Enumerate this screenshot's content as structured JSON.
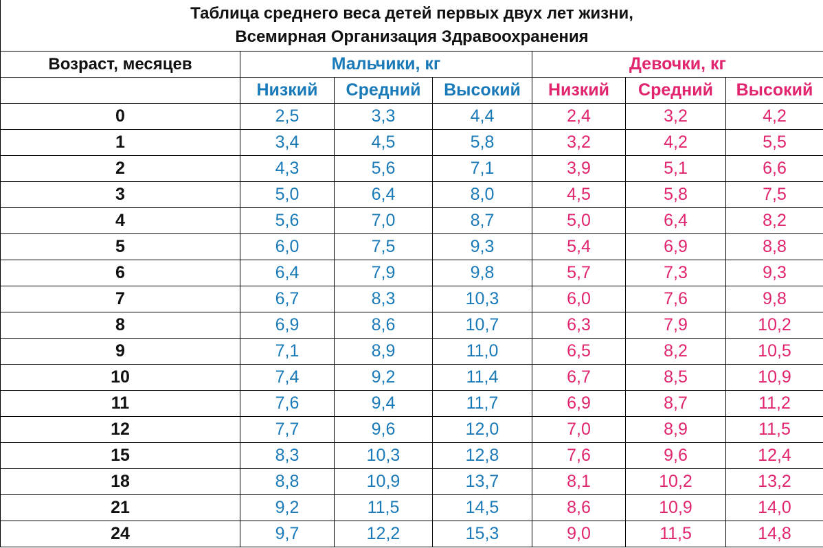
{
  "title": {
    "line1": "Таблица среднего веса детей первых двух лет жизни,",
    "line2": "Всемирная Организация Здравоохранения"
  },
  "header": {
    "age": "Возраст, месяцев",
    "boys": "Мальчики, кг",
    "girls": "Девочки, кг",
    "sub_boys": [
      "Низкий",
      "Средний",
      "Высокий"
    ],
    "sub_girls": [
      "Низкий",
      "Средний",
      "Высокий"
    ]
  },
  "colors": {
    "boys": "#1a7ab8",
    "girls": "#e0246e",
    "text": "#111111"
  },
  "rows": [
    {
      "age": "0",
      "boys": [
        "2,5",
        "3,3",
        "4,4"
      ],
      "girls": [
        "2,4",
        "3,2",
        "4,2"
      ]
    },
    {
      "age": "1",
      "boys": [
        "3,4",
        "4,5",
        "5,8"
      ],
      "girls": [
        "3,2",
        "4,2",
        "5,5"
      ]
    },
    {
      "age": "2",
      "boys": [
        "4,3",
        "5,6",
        "7,1"
      ],
      "girls": [
        "3,9",
        "5,1",
        "6,6"
      ]
    },
    {
      "age": "3",
      "boys": [
        "5,0",
        "6,4",
        "8,0"
      ],
      "girls": [
        "4,5",
        "5,8",
        "7,5"
      ]
    },
    {
      "age": "4",
      "boys": [
        "5,6",
        "7,0",
        "8,7"
      ],
      "girls": [
        "5,0",
        "6,4",
        "8,2"
      ]
    },
    {
      "age": "5",
      "boys": [
        "6,0",
        "7,5",
        "9,3"
      ],
      "girls": [
        "5,4",
        "6,9",
        "8,8"
      ]
    },
    {
      "age": "6",
      "boys": [
        "6,4",
        "7,9",
        "9,8"
      ],
      "girls": [
        "5,7",
        "7,3",
        "9,3"
      ]
    },
    {
      "age": "7",
      "boys": [
        "6,7",
        "8,3",
        "10,3"
      ],
      "girls": [
        "6,0",
        "7,6",
        "9,8"
      ]
    },
    {
      "age": "8",
      "boys": [
        "6,9",
        "8,6",
        "10,7"
      ],
      "girls": [
        "6,3",
        "7,9",
        "10,2"
      ]
    },
    {
      "age": "9",
      "boys": [
        "7,1",
        "8,9",
        "11,0"
      ],
      "girls": [
        "6,5",
        "8,2",
        "10,5"
      ]
    },
    {
      "age": "10",
      "boys": [
        "7,4",
        "9,2",
        "11,4"
      ],
      "girls": [
        "6,7",
        "8,5",
        "10,9"
      ]
    },
    {
      "age": "11",
      "boys": [
        "7,6",
        "9,4",
        "11,7"
      ],
      "girls": [
        "6,9",
        "8,7",
        "11,2"
      ]
    },
    {
      "age": "12",
      "boys": [
        "7,7",
        "9,6",
        "12,0"
      ],
      "girls": [
        "7,0",
        "8,9",
        "11,5"
      ]
    },
    {
      "age": "15",
      "boys": [
        "8,3",
        "10,3",
        "12,8"
      ],
      "girls": [
        "7,6",
        "9,6",
        "12,4"
      ]
    },
    {
      "age": "18",
      "boys": [
        "8,8",
        "10,9",
        "13,7"
      ],
      "girls": [
        "8,1",
        "10,2",
        "13,2"
      ]
    },
    {
      "age": "21",
      "boys": [
        "9,2",
        "11,5",
        "14,5"
      ],
      "girls": [
        "8,6",
        "10,9",
        "14,0"
      ]
    },
    {
      "age": "24",
      "boys": [
        "9,7",
        "12,2",
        "15,3"
      ],
      "girls": [
        "9,0",
        "11,5",
        "14,8"
      ]
    }
  ]
}
